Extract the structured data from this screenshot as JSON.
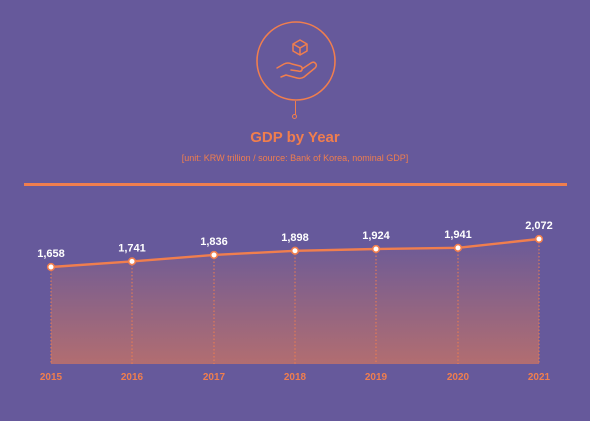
{
  "header": {
    "title": "GDP by Year",
    "subtitle": "[unit: KRW trillion / source: Bank of Korea, nominal GDP]",
    "icon": "hand-holding-cube-icon"
  },
  "colors": {
    "background": "#66599b",
    "accent": "#f07e4e",
    "value_label": "#ffffff"
  },
  "chart_data": {
    "type": "line",
    "title": "GDP by Year",
    "x": [
      "2015",
      "2016",
      "2017",
      "2018",
      "2019",
      "2020",
      "2021"
    ],
    "values": [
      1658,
      1741,
      1836,
      1898,
      1924,
      1941,
      2072
    ],
    "value_labels": [
      "1,658",
      "1,741",
      "1,836",
      "1,898",
      "1,924",
      "1,941",
      "2,072"
    ],
    "grid": false,
    "area_fill": true
  }
}
